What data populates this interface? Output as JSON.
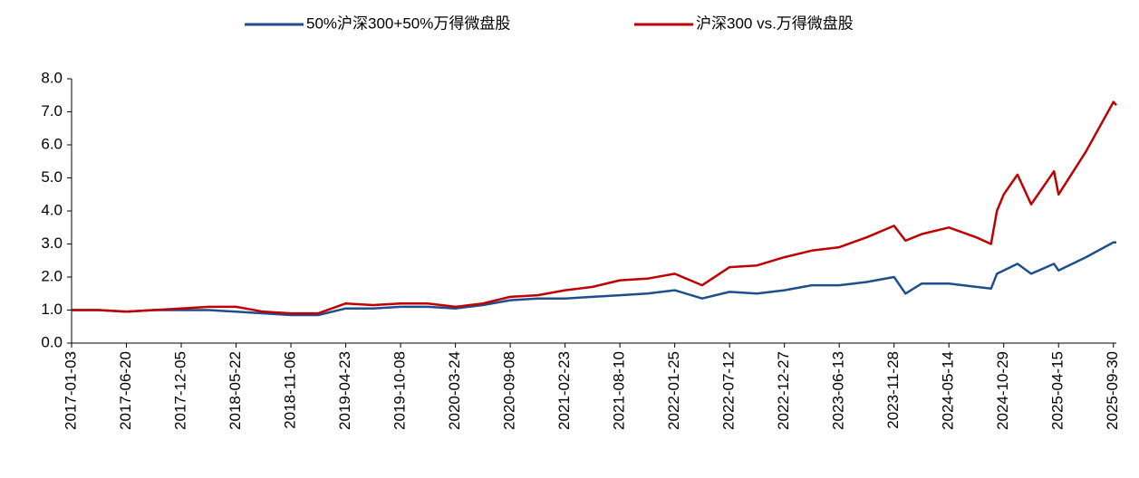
{
  "chart_data": {
    "type": "line",
    "x": [
      "2017-01-03",
      "2017-03-28",
      "2017-06-20",
      "2017-09-12",
      "2017-12-05",
      "2018-02-27",
      "2018-05-22",
      "2018-08-14",
      "2018-11-06",
      "2019-01-29",
      "2019-04-23",
      "2019-07-16",
      "2019-10-08",
      "2019-12-31",
      "2020-03-24",
      "2020-06-16",
      "2020-09-08",
      "2020-12-01",
      "2021-02-23",
      "2021-05-18",
      "2021-08-10",
      "2021-11-02",
      "2022-01-25",
      "2022-04-19",
      "2022-07-12",
      "2022-10-04",
      "2022-12-27",
      "2023-03-21",
      "2023-06-13",
      "2023-09-05",
      "2023-11-28",
      "2024-01-02",
      "2024-02-20",
      "2024-05-14",
      "2024-08-06",
      "2024-09-20",
      "2024-10-08",
      "2024-10-29",
      "2024-12-10",
      "2025-01-21",
      "2025-04-01",
      "2025-04-15",
      "2025-07-08",
      "2025-09-30",
      "2025-10-09"
    ],
    "series": [
      {
        "name": "50%沪深300+50%万得微盘股",
        "color": "#1f4e8c",
        "values": [
          1.0,
          1.0,
          0.95,
          1.0,
          1.0,
          1.0,
          0.95,
          0.9,
          0.85,
          0.85,
          1.05,
          1.05,
          1.1,
          1.1,
          1.05,
          1.15,
          1.3,
          1.35,
          1.35,
          1.4,
          1.45,
          1.5,
          1.6,
          1.35,
          1.55,
          1.5,
          1.6,
          1.75,
          1.75,
          1.85,
          2.0,
          1.5,
          1.8,
          1.8,
          1.7,
          1.65,
          2.1,
          2.2,
          2.4,
          2.1,
          2.4,
          2.2,
          2.6,
          3.05,
          3.05
        ]
      },
      {
        "name": "沪深300 vs.万得微盘股",
        "color": "#c00000",
        "values": [
          1.0,
          1.0,
          0.95,
          1.0,
          1.05,
          1.1,
          1.1,
          0.95,
          0.9,
          0.9,
          1.2,
          1.15,
          1.2,
          1.2,
          1.1,
          1.2,
          1.4,
          1.45,
          1.6,
          1.7,
          1.9,
          1.95,
          2.1,
          1.75,
          2.3,
          2.35,
          2.6,
          2.8,
          2.9,
          3.2,
          3.55,
          3.1,
          3.3,
          3.5,
          3.2,
          3.0,
          4.0,
          4.5,
          5.1,
          4.2,
          5.2,
          4.5,
          5.8,
          7.3,
          7.2
        ]
      }
    ],
    "xlim": [
      "2017-01-03",
      "2025-10-09"
    ],
    "xticks": [
      "2017-01-03",
      "2017-06-20",
      "2017-12-05",
      "2018-05-22",
      "2018-11-06",
      "2019-04-23",
      "2019-10-08",
      "2020-03-24",
      "2020-09-08",
      "2021-02-23",
      "2021-08-10",
      "2022-01-25",
      "2022-07-12",
      "2022-12-27",
      "2023-06-13",
      "2023-11-28",
      "2024-05-14",
      "2024-10-29",
      "2025-04-15",
      "2025-09-30"
    ],
    "ylim": [
      0,
      8
    ],
    "yticks": [
      {
        "value": 0,
        "label": "0.0"
      },
      {
        "value": 1,
        "label": "1.0"
      },
      {
        "value": 2,
        "label": "2.0"
      },
      {
        "value": 3,
        "label": "3.0"
      },
      {
        "value": 4,
        "label": "4.0"
      },
      {
        "value": 5,
        "label": "5.0"
      },
      {
        "value": 6,
        "label": "6.0"
      },
      {
        "value": 7,
        "label": "7.0"
      },
      {
        "value": 8,
        "label": "8.0"
      }
    ],
    "grid": false,
    "legend": "top"
  }
}
